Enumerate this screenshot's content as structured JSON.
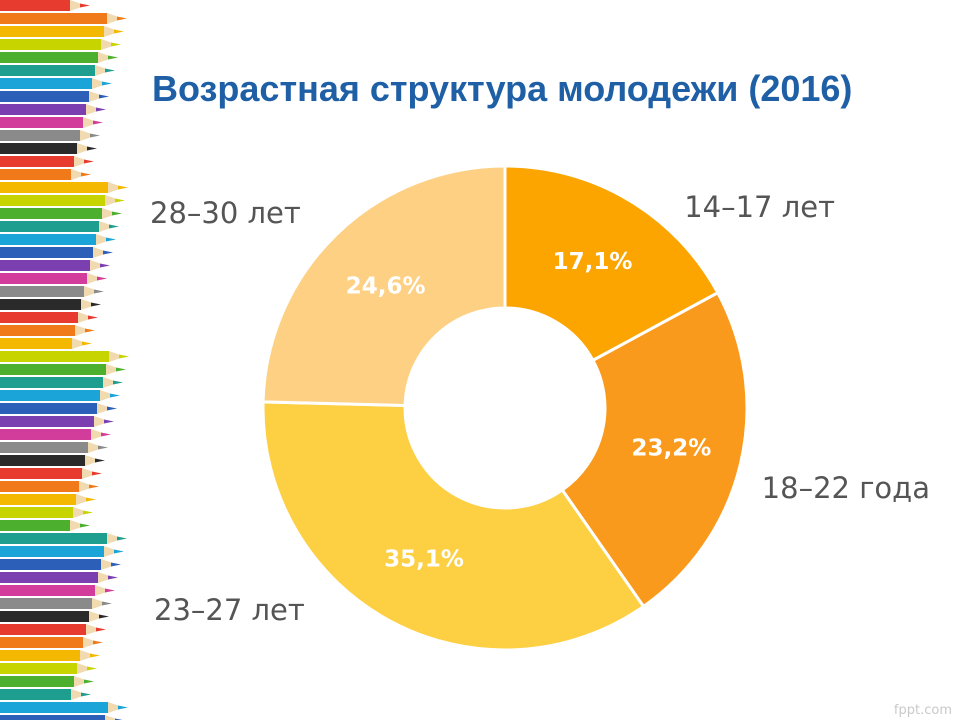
{
  "slide": {
    "title": "Возрастная структура молодежи (2016)",
    "watermark": "fppt.com"
  },
  "chart_data": {
    "type": "pie",
    "title": "Возрастная структура молодежи (2016)",
    "donut": true,
    "categories": [
      "14–17 лет",
      "18–22 года",
      "23–27 лет",
      "28–30 лет"
    ],
    "values": [
      17.1,
      23.2,
      35.1,
      24.6
    ],
    "value_labels": [
      "17,1%",
      "23,2%",
      "35,1%",
      "24,6%"
    ],
    "colors": [
      "#fca500",
      "#f99a1c",
      "#fdcf43",
      "#fdd083"
    ]
  },
  "decor": {
    "pencil_colors": [
      "#e63b2e",
      "#f07a1a",
      "#f5b800",
      "#c8d400",
      "#4caf2d",
      "#1e9e8e",
      "#1ba4d8",
      "#2c5fb8",
      "#7b3fb0",
      "#d23c9a",
      "#8a8a8a",
      "#2a2a2a"
    ]
  }
}
